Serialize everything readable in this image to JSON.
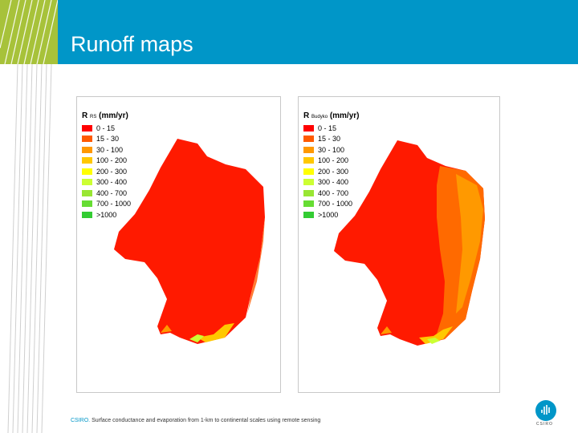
{
  "slide": {
    "title": "Runoff maps"
  },
  "colors": {
    "header_blue": "#0096c8",
    "accent_green": "#a7c23a"
  },
  "maps": [
    {
      "symbol": "R",
      "subscript": "RS",
      "units": "(mm/yr)",
      "legend": [
        {
          "label": "0 - 15",
          "color": "#ff0000"
        },
        {
          "label": "15 - 30",
          "color": "#ff5a00"
        },
        {
          "label": "30 - 100",
          "color": "#ff9900"
        },
        {
          "label": "100 - 200",
          "color": "#ffc800"
        },
        {
          "label": "200 - 300",
          "color": "#ffff00"
        },
        {
          "label": "300 - 400",
          "color": "#ccff33"
        },
        {
          "label": "400 - 700",
          "color": "#99e633"
        },
        {
          "label": "700 - 1000",
          "color": "#66dd33"
        },
        {
          "label": ">1000",
          "color": "#33cc33"
        }
      ]
    },
    {
      "symbol": "R",
      "subscript": "Budyko",
      "units": "(mm/yr)",
      "legend": [
        {
          "label": "0 - 15",
          "color": "#ff0000"
        },
        {
          "label": "15 - 30",
          "color": "#ff5a00"
        },
        {
          "label": "30 - 100",
          "color": "#ff9900"
        },
        {
          "label": "100 - 200",
          "color": "#ffc800"
        },
        {
          "label": "200 - 300",
          "color": "#ffff00"
        },
        {
          "label": "300 - 400",
          "color": "#ccff33"
        },
        {
          "label": "400 - 700",
          "color": "#99e633"
        },
        {
          "label": "700 - 1000",
          "color": "#66dd33"
        },
        {
          "label": ">1000",
          "color": "#33cc33"
        }
      ]
    }
  ],
  "footer": {
    "org": "CSIRO.",
    "caption": "Surface conductance and evaporation from 1-km to continental scales using remote sensing",
    "logo_text": "CSIRO",
    "logo_icon": "csiro-logo-icon"
  }
}
